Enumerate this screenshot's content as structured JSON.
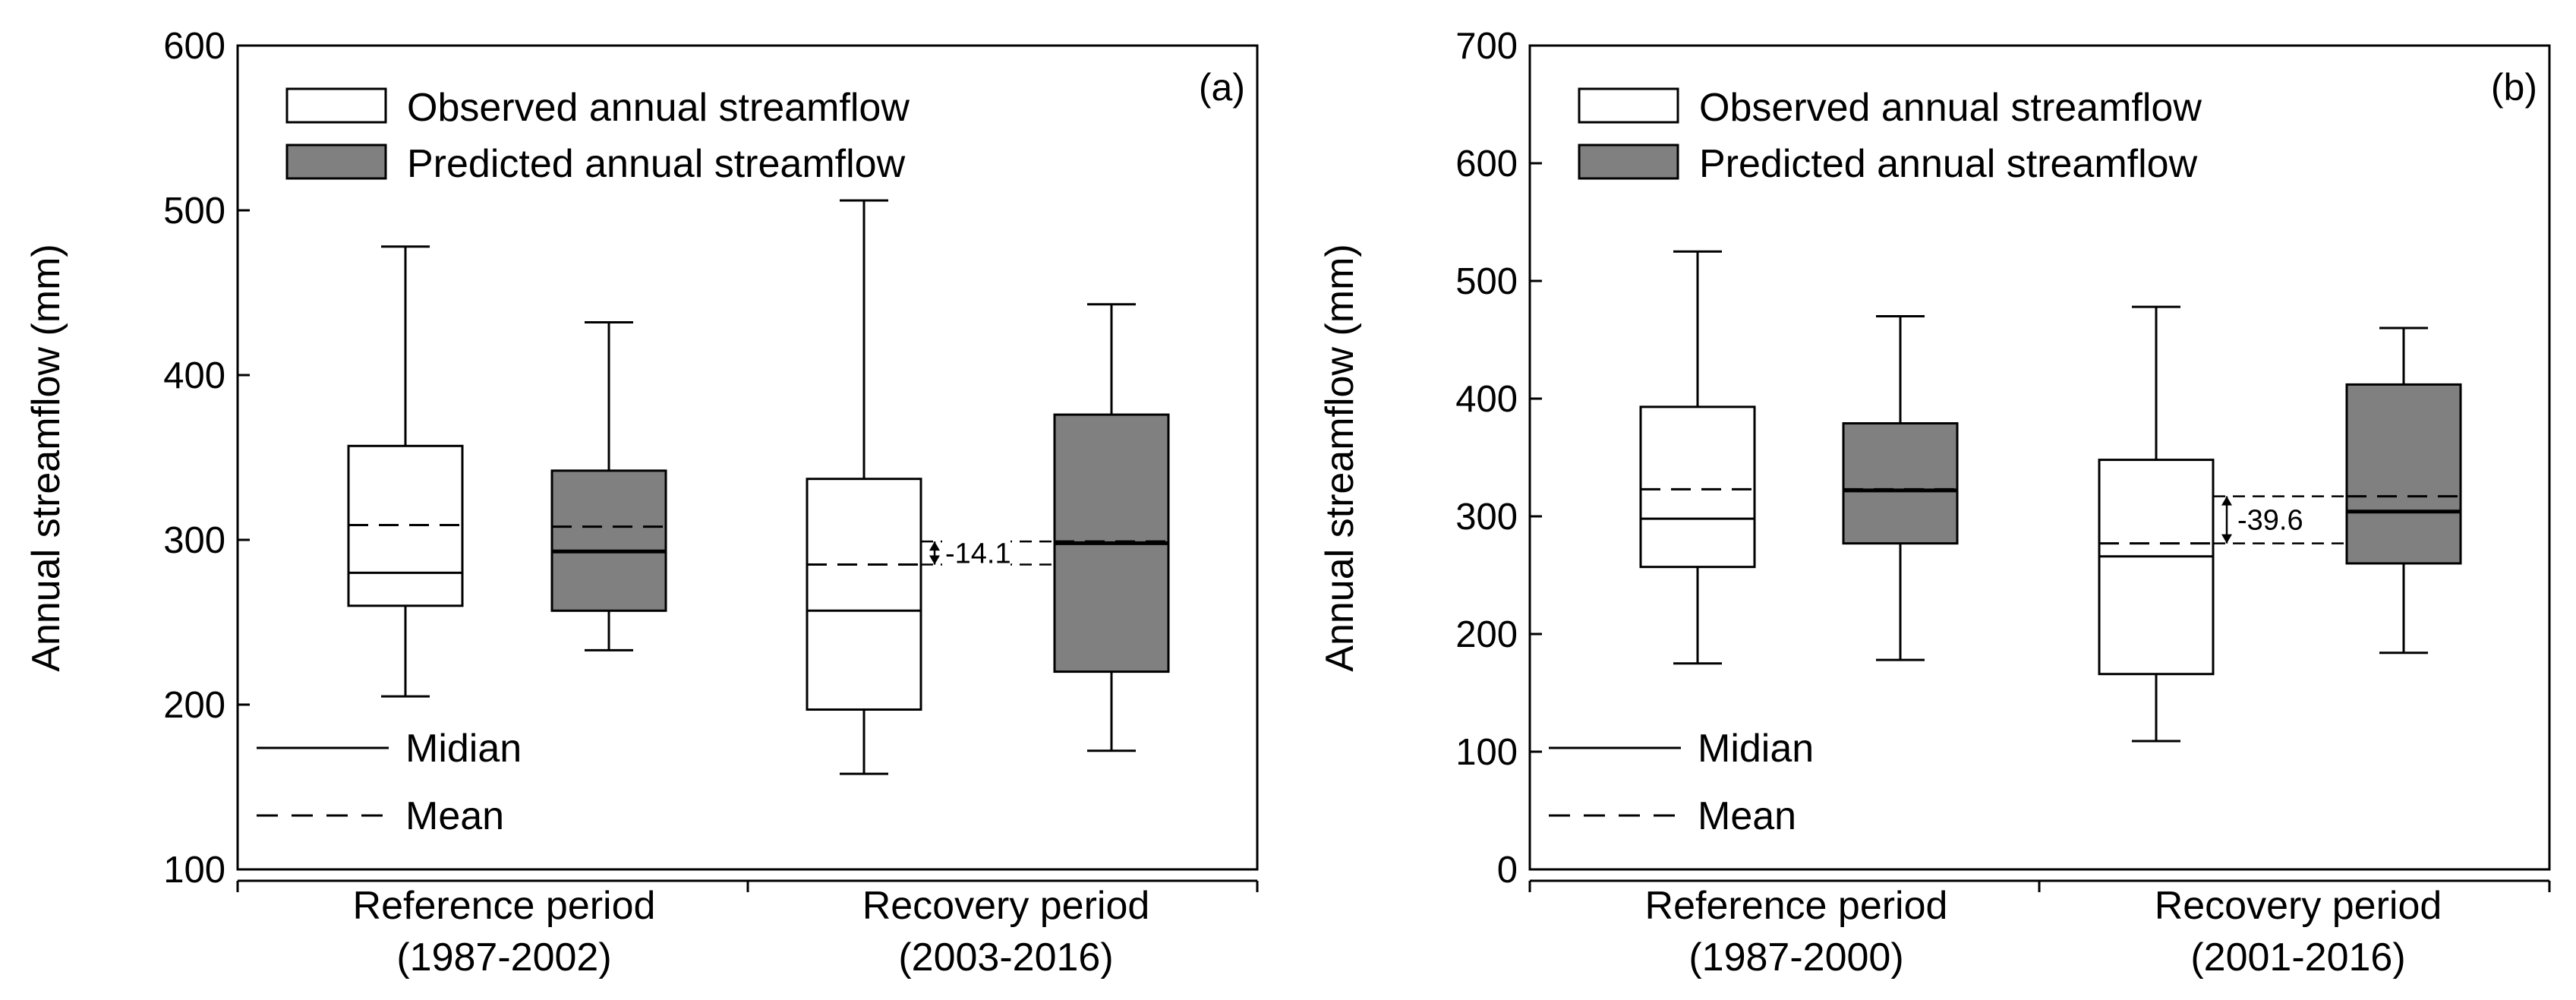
{
  "chart_data": [
    {
      "type": "boxplot",
      "panel_label": "(a)",
      "ylabel": "Annual streamflow (mm)",
      "ylim": [
        100,
        600
      ],
      "yticks": [
        "100",
        "200",
        "300",
        "400",
        "500",
        "600"
      ],
      "categories": [
        {
          "line1": "Reference period",
          "line2": "(1987-2002)"
        },
        {
          "line1": "Recovery period",
          "line2": "(2003-2016)"
        }
      ],
      "legend": {
        "observed": "Observed annual streamflow",
        "predicted": "Predicted annual streamflow",
        "median": "Midian",
        "mean": "Mean"
      },
      "series": [
        {
          "name": "Observed annual streamflow",
          "fill": "#ffffff",
          "boxes": [
            {
              "min": 205,
              "q1": 260,
              "median": 280,
              "mean": 309,
              "q3": 357,
              "max": 478
            },
            {
              "min": 158,
              "q1": 197,
              "median": 257,
              "mean": 285,
              "q3": 337,
              "max": 506
            }
          ]
        },
        {
          "name": "Predicted annual streamflow",
          "fill": "#808080",
          "boxes": [
            {
              "min": 233,
              "q1": 257,
              "median": 293,
              "mean": 308,
              "q3": 342,
              "max": 432
            },
            {
              "min": 172,
              "q1": 220,
              "median": 298,
              "mean": 299,
              "q3": 376,
              "max": 443
            }
          ]
        }
      ],
      "difference": {
        "value": "-14.1",
        "from": 285,
        "to": 299
      }
    },
    {
      "type": "boxplot",
      "panel_label": "(b)",
      "ylabel": "Annual streamflow (mm)",
      "ylim": [
        0,
        700
      ],
      "yticks": [
        "0",
        "100",
        "200",
        "300",
        "400",
        "500",
        "600",
        "700"
      ],
      "categories": [
        {
          "line1": "Reference period",
          "line2": "(1987-2000)"
        },
        {
          "line1": "Recovery period",
          "line2": "(2001-2016)"
        }
      ],
      "legend": {
        "observed": "Observed annual streamflow",
        "predicted": "Predicted annual streamflow",
        "median": "Midian",
        "mean": "Mean"
      },
      "series": [
        {
          "name": "Observed annual streamflow",
          "fill": "#ffffff",
          "boxes": [
            {
              "min": 175,
              "q1": 257,
              "median": 298,
              "mean": 323,
              "q3": 393,
              "max": 525
            },
            {
              "min": 109,
              "q1": 166,
              "median": 266,
              "mean": 277,
              "q3": 348,
              "max": 478
            }
          ]
        },
        {
          "name": "Predicted annual streamflow",
          "fill": "#808080",
          "boxes": [
            {
              "min": 178,
              "q1": 277,
              "median": 322,
              "mean": 323,
              "q3": 379,
              "max": 470
            },
            {
              "min": 184,
              "q1": 260,
              "median": 304,
              "mean": 317,
              "q3": 412,
              "max": 460
            }
          ]
        }
      ],
      "difference": {
        "value": "-39.6",
        "from": 277,
        "to": 317
      }
    }
  ]
}
